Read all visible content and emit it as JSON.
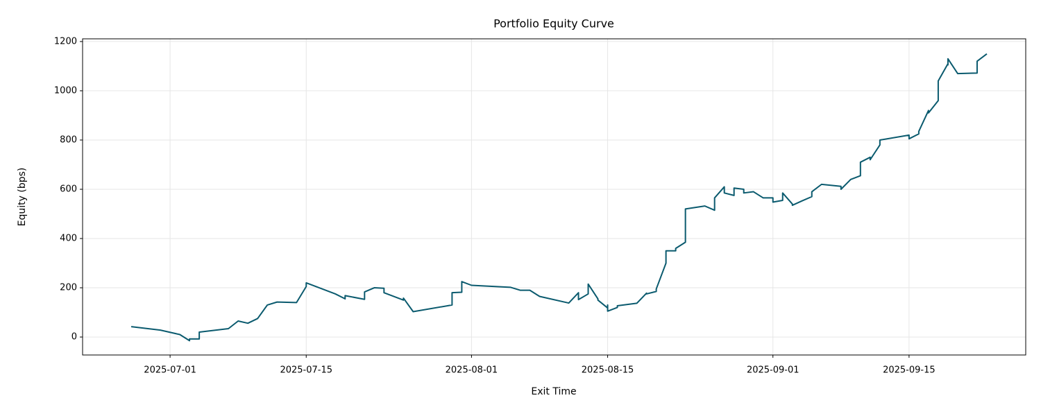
{
  "chart_data": {
    "type": "line",
    "title": "Portfolio Equity Curve",
    "xlabel": "Exit Time",
    "ylabel": "Equity (bps)",
    "color": "#0a5a6e",
    "grid": true,
    "xlim": [
      "2025-06-22",
      "2025-09-27"
    ],
    "ylim": [
      -73,
      1211
    ],
    "xticks": [
      "2025-07-01",
      "2025-07-15",
      "2025-08-01",
      "2025-08-15",
      "2025-09-01",
      "2025-09-15"
    ],
    "yticks": [
      0,
      200,
      400,
      600,
      800,
      1000,
      1200
    ],
    "x": [
      "2025-06-27",
      "2025-06-30",
      "2025-07-02",
      "2025-07-03",
      "2025-07-03",
      "2025-07-04",
      "2025-07-04",
      "2025-07-07",
      "2025-07-08",
      "2025-07-09",
      "2025-07-10",
      "2025-07-11",
      "2025-07-12",
      "2025-07-14",
      "2025-07-15",
      "2025-07-15",
      "2025-07-18",
      "2025-07-19",
      "2025-07-19",
      "2025-07-21",
      "2025-07-21",
      "2025-07-22",
      "2025-07-23",
      "2025-07-23",
      "2025-07-25",
      "2025-07-25",
      "2025-07-26",
      "2025-07-30",
      "2025-07-30",
      "2025-07-31",
      "2025-07-31",
      "2025-07-31",
      "2025-08-01",
      "2025-08-05",
      "2025-08-06",
      "2025-08-07",
      "2025-08-08",
      "2025-08-11",
      "2025-08-12",
      "2025-08-12",
      "2025-08-13",
      "2025-08-13",
      "2025-08-13",
      "2025-08-13",
      "2025-08-14",
      "2025-08-14",
      "2025-08-15",
      "2025-08-15",
      "2025-08-15",
      "2025-08-16",
      "2025-08-16",
      "2025-08-18",
      "2025-08-19",
      "2025-08-19",
      "2025-08-20",
      "2025-08-20",
      "2025-08-21",
      "2025-08-21",
      "2025-08-22",
      "2025-08-22",
      "2025-08-23",
      "2025-08-23",
      "2025-08-23",
      "2025-08-25",
      "2025-08-26",
      "2025-08-26",
      "2025-08-27",
      "2025-08-27",
      "2025-08-28",
      "2025-08-28",
      "2025-08-29",
      "2025-08-29",
      "2025-08-30",
      "2025-08-31",
      "2025-09-01",
      "2025-09-01",
      "2025-09-02",
      "2025-09-02",
      "2025-09-03",
      "2025-09-03",
      "2025-09-04",
      "2025-09-05",
      "2025-09-05",
      "2025-09-06",
      "2025-09-08",
      "2025-09-08",
      "2025-09-09",
      "2025-09-10",
      "2025-09-10",
      "2025-09-11",
      "2025-09-11",
      "2025-09-12",
      "2025-09-12",
      "2025-09-15",
      "2025-09-15",
      "2025-09-16",
      "2025-09-16",
      "2025-09-17",
      "2025-09-17",
      "2025-09-18",
      "2025-09-18",
      "2025-09-19",
      "2025-09-19",
      "2025-09-19",
      "2025-09-20",
      "2025-09-22",
      "2025-09-22",
      "2025-09-23"
    ],
    "values": [
      42,
      28,
      10,
      -15,
      -8,
      -8,
      20,
      34,
      65,
      56,
      75,
      130,
      142,
      140,
      205,
      220,
      175,
      155,
      168,
      153,
      183,
      200,
      198,
      180,
      150,
      158,
      103,
      130,
      180,
      182,
      215,
      225,
      210,
      202,
      190,
      190,
      165,
      138,
      180,
      152,
      175,
      210,
      207,
      215,
      155,
      150,
      118,
      130,
      105,
      120,
      127,
      137,
      178,
      175,
      185,
      195,
      300,
      350,
      350,
      360,
      385,
      400,
      520,
      532,
      515,
      565,
      610,
      585,
      575,
      605,
      600,
      585,
      590,
      565,
      565,
      548,
      555,
      585,
      540,
      535,
      553,
      570,
      590,
      620,
      612,
      600,
      640,
      655,
      710,
      730,
      720,
      780,
      800,
      820,
      805,
      825,
      835,
      920,
      910,
      960,
      1040,
      1110,
      1105,
      1130,
      1070,
      1072,
      1120,
      1150
    ]
  }
}
